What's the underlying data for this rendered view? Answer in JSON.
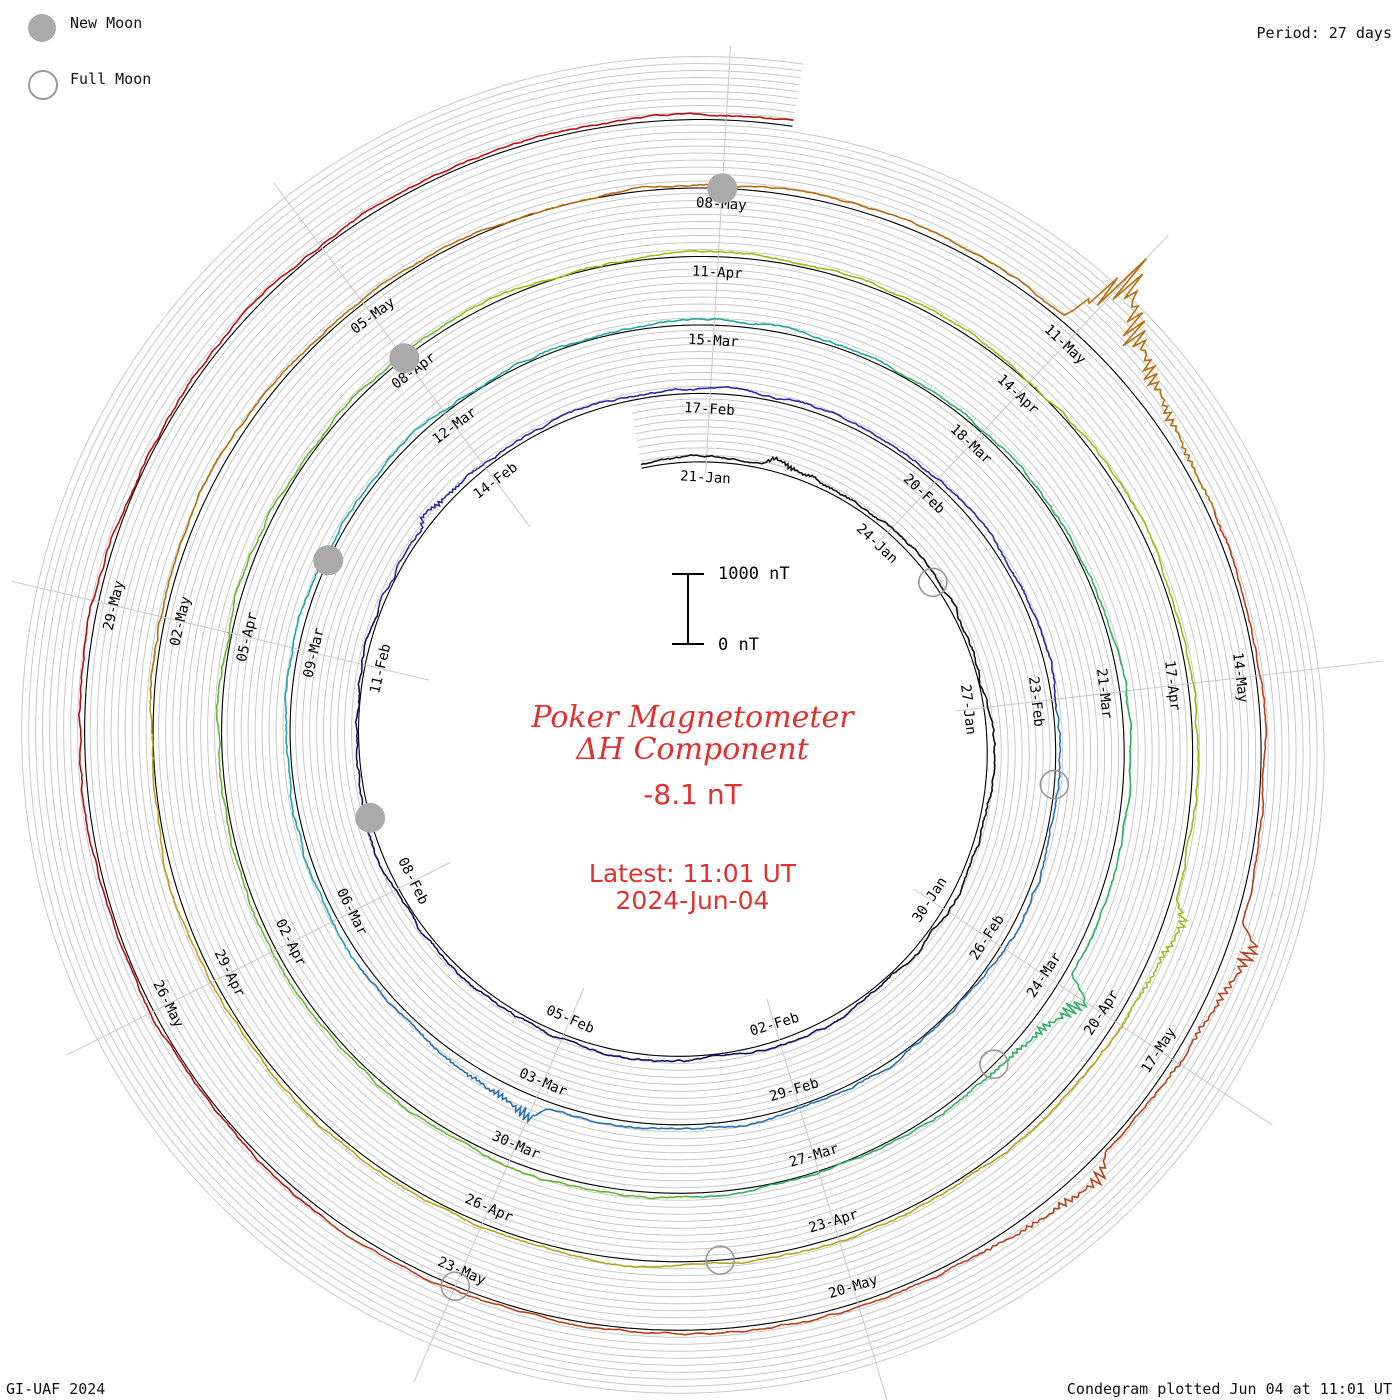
{
  "header": {
    "period_label": "Period: 27 days"
  },
  "legend": {
    "new_moon_label": "New Moon",
    "full_moon_label": "Full Moon",
    "new_moon_color": "#aaaaaa",
    "full_moon_color": "#999999"
  },
  "footer": {
    "credit": "GI-UAF 2024",
    "plotted": "Condegram plotted Jun 04 at 11:01 UT"
  },
  "center": {
    "title_line1": "Poker Magnetometer",
    "title_line2": "ΔH Component",
    "current_value": "-8.1 nT",
    "latest_line1": "Latest: 11:01 UT",
    "latest_line2": "2024-Jun-04",
    "scale_top_label": "1000 nT",
    "scale_bottom_label": "0 nT",
    "text_color": "#e03030"
  },
  "chart_data": {
    "type": "line",
    "subtype": "condegram (spiral, 27-day period)",
    "period_days": 27,
    "start_date": "2024-01-20",
    "end_date": "2024-06-04",
    "scale_nT": [
      0,
      1000
    ],
    "grid": true,
    "date_labels": [
      "21-Jan",
      "24-Jan",
      "27-Jan",
      "30-Jan",
      "02-Feb",
      "05-Feb",
      "08-Feb",
      "11-Feb",
      "14-Feb",
      "17-Feb",
      "20-Feb",
      "23-Feb",
      "26-Feb",
      "29-Feb",
      "03-Mar",
      "06-Mar",
      "09-Mar",
      "12-Mar",
      "15-Mar",
      "18-Mar",
      "21-Mar",
      "24-Mar",
      "27-Mar",
      "30-Mar",
      "02-Apr",
      "05-Apr",
      "08-Apr",
      "11-Apr",
      "14-Apr",
      "17-Apr",
      "20-Apr",
      "23-Apr",
      "26-Apr",
      "29-Apr",
      "02-May",
      "05-May",
      "08-May",
      "11-May",
      "14-May",
      "17-May",
      "20-May",
      "23-May",
      "26-May",
      "29-May"
    ],
    "new_moons": [
      "2024-02-09",
      "2024-03-10",
      "2024-04-08",
      "2024-05-08"
    ],
    "full_moons": [
      "2024-01-25",
      "2024-02-24",
      "2024-03-25",
      "2024-04-24",
      "2024-05-23"
    ],
    "events": [
      {
        "date": "2024-01-22",
        "peak_nT": 150
      },
      {
        "date": "2024-02-13",
        "peak_nT": 150
      },
      {
        "date": "2024-03-03",
        "peak_nT": 320
      },
      {
        "date": "2024-03-24",
        "peak_nT": 500
      },
      {
        "date": "2024-04-19",
        "peak_nT": 250
      },
      {
        "date": "2024-05-11",
        "peak_nT": 1400
      },
      {
        "date": "2024-05-16",
        "peak_nT": 400
      },
      {
        "date": "2024-05-18",
        "peak_nT": 320
      }
    ],
    "series_colors": [
      "#101010",
      "#101066",
      "#2a2aa8",
      "#2a70b8",
      "#22a6a8",
      "#33b066",
      "#66b830",
      "#a2b818",
      "#b8a41c",
      "#b86d10",
      "#b8421a",
      "#b81010"
    ]
  }
}
